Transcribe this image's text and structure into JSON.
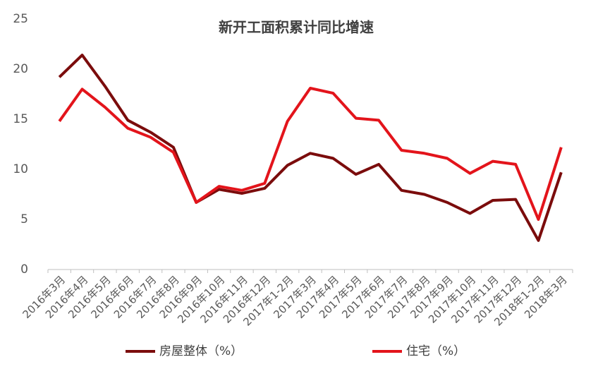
{
  "chart_data": {
    "type": "line",
    "title": "新开工面积累计同比增速",
    "categories": [
      "2016年3月",
      "2016年4月",
      "2016年5月",
      "2016年6月",
      "2016年7月",
      "2016年8月",
      "2016年9月",
      "2016年10月",
      "2016年11月",
      "2016年12月",
      "2017年1-2月",
      "2017年3月",
      "2017年4月",
      "2017年5月",
      "2017年6月",
      "2017年7月",
      "2017年8月",
      "2017年9月",
      "2017年10月",
      "2017年11月",
      "2017年12月",
      "2018年1-2月",
      "2018年3月"
    ],
    "series": [
      {
        "name": "房屋整体（%）",
        "color": "#7b0c0c",
        "values": [
          19.2,
          21.4,
          18.3,
          14.9,
          13.7,
          12.2,
          6.7,
          8.0,
          7.6,
          8.1,
          10.4,
          11.6,
          11.1,
          9.5,
          10.5,
          7.9,
          7.5,
          6.7,
          5.6,
          6.9,
          7.0,
          2.9,
          9.7
        ]
      },
      {
        "name": "住宅（%）",
        "color": "#e3141b",
        "values": [
          14.8,
          18.0,
          16.2,
          14.1,
          13.2,
          11.7,
          6.7,
          8.3,
          7.9,
          8.6,
          14.8,
          18.1,
          17.6,
          15.1,
          14.9,
          11.9,
          11.6,
          11.1,
          9.6,
          10.8,
          10.5,
          5.0,
          12.2
        ]
      }
    ],
    "ylim": [
      0,
      25
    ],
    "yticks": [
      0,
      5,
      10,
      15,
      20,
      25
    ],
    "grid": false
  }
}
